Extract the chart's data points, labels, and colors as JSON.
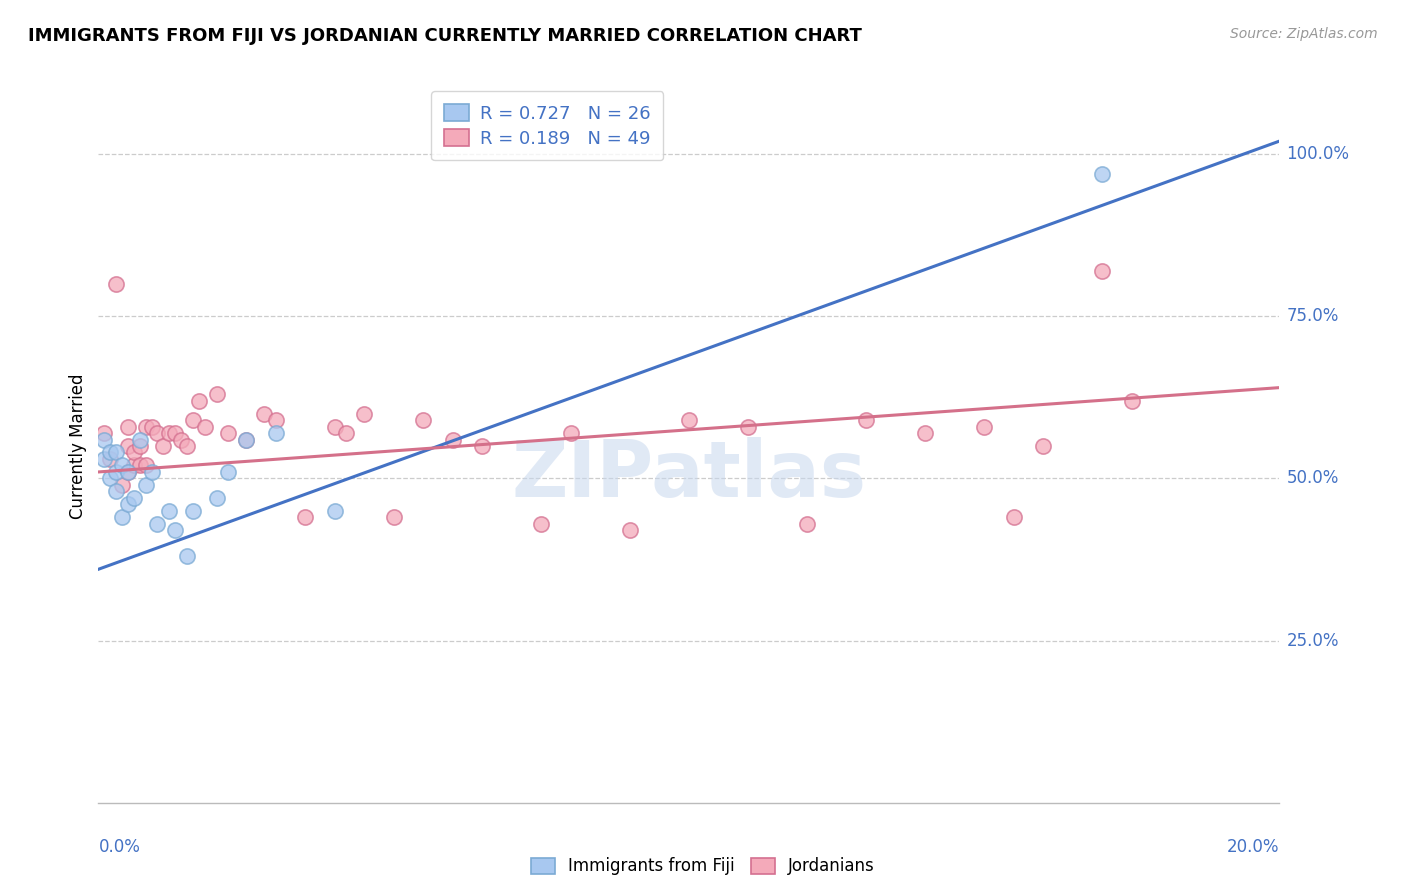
{
  "title": "IMMIGRANTS FROM FIJI VS JORDANIAN CURRENTLY MARRIED CORRELATION CHART",
  "source_text": "Source: ZipAtlas.com",
  "ylabel": "Currently Married",
  "xlim": [
    0.0,
    0.2
  ],
  "ylim": [
    0.0,
    1.1
  ],
  "yticks": [
    0.25,
    0.5,
    0.75,
    1.0
  ],
  "ytick_labels": [
    "25.0%",
    "50.0%",
    "75.0%",
    "100.0%"
  ],
  "fiji_color": "#A8C8F0",
  "fiji_edge_color": "#7BAAD4",
  "jordan_color": "#F4AABA",
  "jordan_edge_color": "#D47090",
  "fiji_line_color": "#4472C4",
  "jordan_line_color": "#D4708A",
  "fiji_R": 0.727,
  "fiji_N": 26,
  "jordan_R": 0.189,
  "jordan_N": 49,
  "legend_label_fiji": "Immigrants from Fiji",
  "legend_label_jordan": "Jordanians",
  "fiji_scatter_x": [
    0.001,
    0.001,
    0.002,
    0.002,
    0.003,
    0.003,
    0.003,
    0.004,
    0.004,
    0.005,
    0.005,
    0.006,
    0.007,
    0.008,
    0.009,
    0.01,
    0.012,
    0.013,
    0.015,
    0.016,
    0.02,
    0.022,
    0.025,
    0.03,
    0.04,
    0.17
  ],
  "fiji_scatter_y": [
    0.53,
    0.56,
    0.5,
    0.54,
    0.48,
    0.51,
    0.54,
    0.44,
    0.52,
    0.46,
    0.51,
    0.47,
    0.56,
    0.49,
    0.51,
    0.43,
    0.45,
    0.42,
    0.38,
    0.45,
    0.47,
    0.51,
    0.56,
    0.57,
    0.45,
    0.97
  ],
  "jordan_scatter_x": [
    0.001,
    0.002,
    0.003,
    0.004,
    0.005,
    0.005,
    0.005,
    0.006,
    0.006,
    0.007,
    0.007,
    0.008,
    0.008,
    0.009,
    0.01,
    0.011,
    0.012,
    0.013,
    0.014,
    0.015,
    0.016,
    0.017,
    0.018,
    0.02,
    0.022,
    0.025,
    0.028,
    0.03,
    0.035,
    0.04,
    0.042,
    0.045,
    0.05,
    0.055,
    0.06,
    0.065,
    0.075,
    0.08,
    0.09,
    0.1,
    0.11,
    0.12,
    0.13,
    0.14,
    0.15,
    0.155,
    0.16,
    0.17,
    0.175
  ],
  "jordan_scatter_y": [
    0.57,
    0.53,
    0.8,
    0.49,
    0.51,
    0.55,
    0.58,
    0.52,
    0.54,
    0.52,
    0.55,
    0.58,
    0.52,
    0.58,
    0.57,
    0.55,
    0.57,
    0.57,
    0.56,
    0.55,
    0.59,
    0.62,
    0.58,
    0.63,
    0.57,
    0.56,
    0.6,
    0.59,
    0.44,
    0.58,
    0.57,
    0.6,
    0.44,
    0.59,
    0.56,
    0.55,
    0.43,
    0.57,
    0.42,
    0.59,
    0.58,
    0.43,
    0.59,
    0.57,
    0.58,
    0.44,
    0.55,
    0.82,
    0.62
  ],
  "fiji_line_x": [
    0.0,
    0.2
  ],
  "fiji_line_y": [
    0.36,
    1.02
  ],
  "jordan_line_x": [
    0.0,
    0.2
  ],
  "jordan_line_y": [
    0.51,
    0.64
  ],
  "watermark_text": "ZIPatlas",
  "background_color": "#FFFFFF",
  "grid_color": "#CCCCCC",
  "grid_linestyle": "--"
}
